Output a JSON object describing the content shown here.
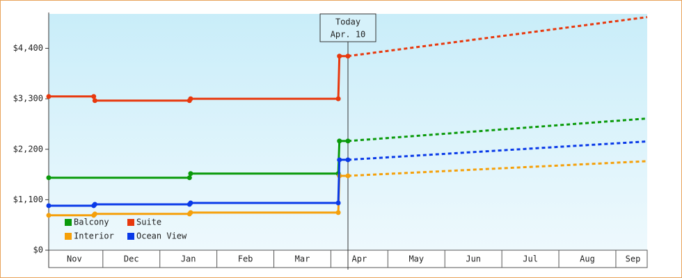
{
  "chart_data": {
    "type": "line",
    "ylim": [
      0,
      5150
    ],
    "yticks": [
      {
        "value": 0,
        "label": "$0"
      },
      {
        "value": 1100,
        "label": "$1,100"
      },
      {
        "value": 2200,
        "label": "$2,200"
      },
      {
        "value": 3300,
        "label": "$3,300"
      },
      {
        "value": 4400,
        "label": "$4,400"
      }
    ],
    "xlim": [
      0.05,
      10.55
    ],
    "xticks": [
      {
        "value": 0.5,
        "label": "Nov"
      },
      {
        "value": 1.5,
        "label": "Dec"
      },
      {
        "value": 2.5,
        "label": "Jan"
      },
      {
        "value": 3.5,
        "label": "Feb"
      },
      {
        "value": 4.5,
        "label": "Mar"
      },
      {
        "value": 5.5,
        "label": "Apr"
      },
      {
        "value": 6.5,
        "label": "May"
      },
      {
        "value": 7.5,
        "label": "Jun"
      },
      {
        "value": 8.5,
        "label": "Jul"
      },
      {
        "value": 9.5,
        "label": "Aug"
      },
      {
        "value": 10.3,
        "label": "Sep"
      }
    ],
    "today": {
      "x": 5.3,
      "label": "Today",
      "date": "Apr. 10"
    },
    "series": [
      {
        "name": "Balcony",
        "color": "#0a9a0a",
        "x": [
          0.05,
          2.52,
          2.54,
          5.13,
          5.15,
          5.3
        ],
        "values": [
          1580,
          1580,
          1670,
          1670,
          2380,
          2380
        ],
        "forecast": {
          "x": [
            5.3,
            10.55
          ],
          "values": [
            2380,
            2870
          ]
        }
      },
      {
        "name": "Suite",
        "color": "#e8380d",
        "x": [
          0.05,
          0.84,
          0.86,
          2.52,
          2.54,
          5.13,
          5.15,
          5.3
        ],
        "values": [
          3350,
          3350,
          3260,
          3260,
          3300,
          3300,
          4230,
          4230
        ],
        "forecast": {
          "x": [
            5.3,
            10.55
          ],
          "values": [
            4230,
            5080
          ]
        }
      },
      {
        "name": "Interior",
        "color": "#f5a00a",
        "x": [
          0.05,
          0.84,
          0.86,
          2.52,
          2.54,
          5.13,
          5.15,
          5.3
        ],
        "values": [
          760,
          760,
          790,
          790,
          820,
          820,
          1620,
          1620
        ],
        "forecast": {
          "x": [
            5.3,
            10.55
          ],
          "values": [
            1620,
            1940
          ]
        }
      },
      {
        "name": "Ocean View",
        "color": "#0a3ae8",
        "x": [
          0.05,
          0.84,
          0.86,
          2.52,
          2.54,
          5.13,
          5.15,
          5.3
        ],
        "values": [
          970,
          970,
          1000,
          1000,
          1030,
          1030,
          1970,
          1970
        ],
        "forecast": {
          "x": [
            5.3,
            10.55
          ],
          "values": [
            1970,
            2370
          ]
        }
      }
    ]
  }
}
